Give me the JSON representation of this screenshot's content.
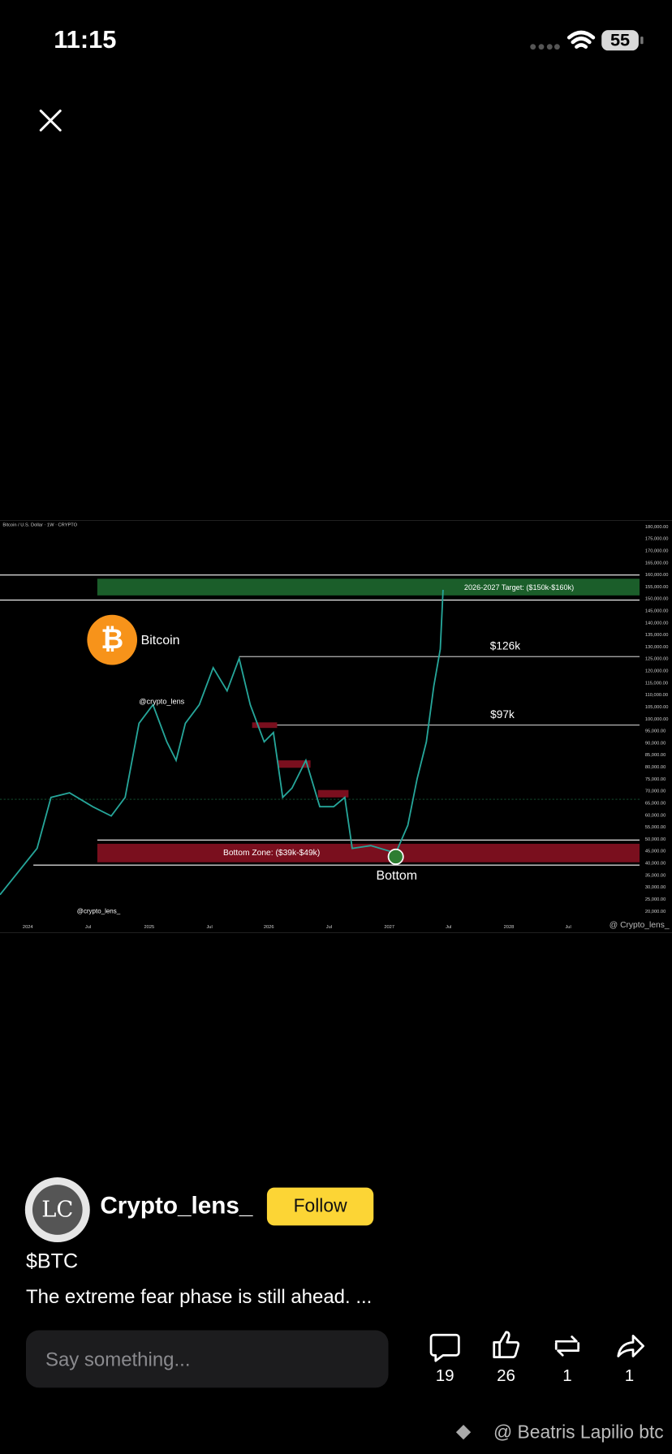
{
  "status_bar": {
    "time": "11:15",
    "battery": "55"
  },
  "post": {
    "image": {
      "header": "Bitcoin / U.S. Dollar · 1W · CRYPTO",
      "badge": "Bitcoin",
      "target_label": "2026-2027 Target: ($150k-$160k)",
      "level_high": "$126k",
      "level_mid": "$97k",
      "bottom_zone": "Bottom Zone: ($39k-$49k)",
      "bottom": "Bottom",
      "watermark_top": "@crypto_lens",
      "watermark_bottom": "@crypto_lens_",
      "source": "@ Crypto_lens_",
      "price_labels": [
        "180,000.00",
        "175,000.00",
        "170,000.00",
        "165,000.00",
        "160,000.00",
        "155,000.00",
        "150,000.00",
        "145,000.00",
        "140,000.00",
        "135,000.00",
        "130,000.00",
        "125,000.00",
        "120,000.00",
        "115,000.00",
        "110,000.00",
        "105,000.00",
        "100,000.00",
        "95,000.00",
        "90,000.00",
        "85,000.00",
        "80,000.00",
        "75,000.00",
        "70,000.00",
        "65,000.00",
        "60,000.00",
        "55,000.00",
        "50,000.00",
        "45,000.00",
        "40,000.00",
        "35,000.00",
        "30,000.00",
        "25,000.00",
        "20,000.00"
      ],
      "time_labels": [
        "2024",
        "Jul",
        "2025",
        "Jul",
        "2026",
        "Jul",
        "2027",
        "Jul",
        "2028",
        "Jul"
      ]
    },
    "author": "Crypto_lens_",
    "follow": "Follow",
    "ticker": "$BTC",
    "caption": "The extreme fear phase is still ahead. ..."
  },
  "comment_input": {
    "placeholder": "Say something..."
  },
  "actions": [
    {
      "name": "comment",
      "count": 19
    },
    {
      "name": "like",
      "count": 26
    },
    {
      "name": "repost",
      "count": 1
    },
    {
      "name": "share",
      "count": 1
    }
  ],
  "footer": {
    "watermark": "@ Beatris Lapilio btc"
  }
}
